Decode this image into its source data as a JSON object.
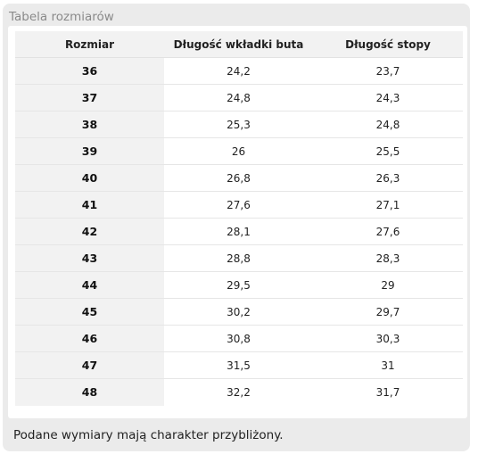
{
  "panel": {
    "title": "Tabela rozmiarów",
    "note": "Podane wymiary mają charakter przybliżony."
  },
  "table": {
    "headers": [
      "Rozmiar",
      "Długość wkładki buta",
      "Długość stopy"
    ],
    "rows": [
      [
        "36",
        "24,2",
        "23,7"
      ],
      [
        "37",
        "24,8",
        "24,3"
      ],
      [
        "38",
        "25,3",
        "24,8"
      ],
      [
        "39",
        "26",
        "25,5"
      ],
      [
        "40",
        "26,8",
        "26,3"
      ],
      [
        "41",
        "27,6",
        "27,1"
      ],
      [
        "42",
        "28,1",
        "27,6"
      ],
      [
        "43",
        "28,8",
        "28,3"
      ],
      [
        "44",
        "29,5",
        "29"
      ],
      [
        "45",
        "30,2",
        "29,7"
      ],
      [
        "46",
        "30,8",
        "30,3"
      ],
      [
        "47",
        "31,5",
        "31"
      ],
      [
        "48",
        "32,2",
        "31,7"
      ]
    ]
  }
}
